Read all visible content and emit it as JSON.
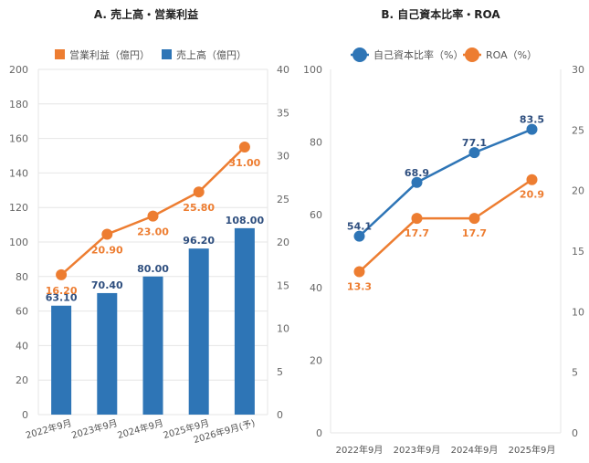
{
  "chart_data": [
    {
      "type": "bar",
      "title": "A. 売上高・営業利益",
      "categories": [
        "2022年9月",
        "2023年9月",
        "2024年9月",
        "2025年9月",
        "2026年9月(予)"
      ],
      "series": [
        {
          "name": "売上高（億円）",
          "type": "bar",
          "axis": "left",
          "color": "#2e75b6",
          "values": [
            63.1,
            70.4,
            80.0,
            96.2,
            108.0
          ],
          "labels": [
            "63.10",
            "70.40",
            "80.00",
            "96.20",
            "108.00"
          ]
        },
        {
          "name": "営業利益（億円）",
          "type": "line",
          "axis": "right",
          "color": "#ed7d31",
          "values": [
            16.2,
            20.9,
            23.0,
            25.8,
            31.0
          ],
          "labels": [
            "16.20",
            "20.90",
            "23.00",
            "25.80",
            "31.00"
          ]
        }
      ],
      "ylim_left": [
        0,
        200
      ],
      "yticks_left": [
        "0",
        "20",
        "40",
        "60",
        "80",
        "100",
        "120",
        "140",
        "160",
        "180",
        "200"
      ],
      "ylim_right": [
        0,
        40
      ],
      "yticks_right": [
        "0",
        "5",
        "10",
        "15",
        "20",
        "25",
        "30",
        "35",
        "40"
      ],
      "grid": true,
      "legend_position": "top"
    },
    {
      "type": "line",
      "title": "B. 自己資本比率・ROA",
      "categories": [
        "2022年9月",
        "2023年9月",
        "2024年9月",
        "2025年9月"
      ],
      "series": [
        {
          "name": "自己資本比率（%）",
          "axis": "left",
          "color": "#2e75b6",
          "values": [
            54.1,
            68.9,
            77.1,
            83.5
          ],
          "labels": [
            "54.1",
            "68.9",
            "77.1",
            "83.5"
          ]
        },
        {
          "name": "ROA（%）",
          "axis": "right",
          "color": "#ed7d31",
          "values": [
            13.3,
            17.7,
            17.7,
            20.9
          ],
          "labels": [
            "13.3",
            "17.7",
            "17.7",
            "20.9"
          ]
        }
      ],
      "ylim_left": [
        0,
        100
      ],
      "yticks_left": [
        "0",
        "20",
        "40",
        "60",
        "80",
        "100"
      ],
      "ylim_right": [
        0,
        30
      ],
      "yticks_right": [
        "0",
        "5",
        "10",
        "15",
        "20",
        "25",
        "30"
      ],
      "grid": false,
      "legend_position": "top"
    }
  ]
}
